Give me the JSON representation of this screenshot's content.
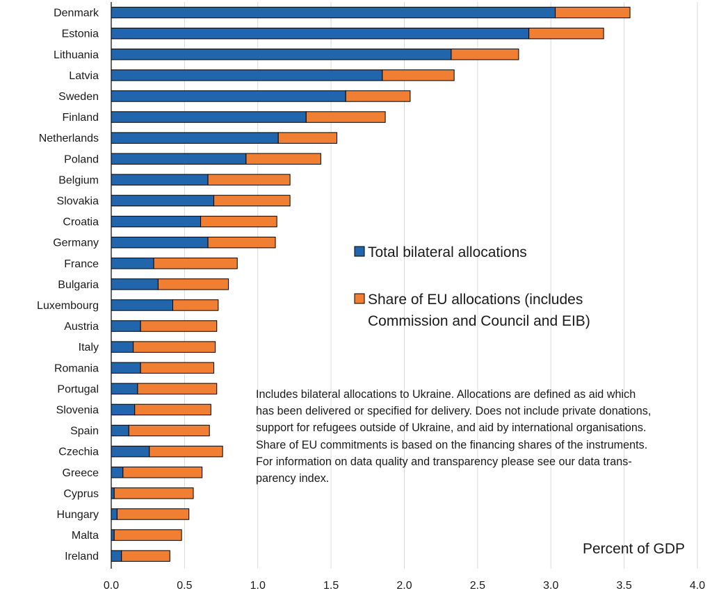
{
  "chart_data": {
    "type": "bar",
    "orientation": "horizontal",
    "stacked": true,
    "categories": [
      "Denmark",
      "Estonia",
      "Lithuania",
      "Latvia",
      "Sweden",
      "Finland",
      "Netherlands",
      "Poland",
      "Belgium",
      "Slovakia",
      "Croatia",
      "Germany",
      "France",
      "Bulgaria",
      "Luxembourg",
      "Austria",
      "Italy",
      "Romania",
      "Portugal",
      "Slovenia",
      "Spain",
      "Czechia",
      "Greece",
      "Cyprus",
      "Hungary",
      "Malta",
      "Ireland"
    ],
    "series": [
      {
        "name": "Total bilateral allocations",
        "color": "#2166ac",
        "values": [
          3.03,
          2.85,
          2.32,
          1.85,
          1.6,
          1.33,
          1.14,
          0.92,
          0.66,
          0.7,
          0.61,
          0.66,
          0.29,
          0.32,
          0.42,
          0.2,
          0.15,
          0.2,
          0.18,
          0.16,
          0.12,
          0.26,
          0.08,
          0.02,
          0.04,
          0.02,
          0.07
        ]
      },
      {
        "name": "Share of EU allocations (includes Commission and Council and EIB)",
        "color": "#f07e33",
        "values": [
          0.51,
          0.51,
          0.46,
          0.49,
          0.44,
          0.54,
          0.4,
          0.51,
          0.56,
          0.52,
          0.52,
          0.46,
          0.57,
          0.48,
          0.31,
          0.52,
          0.56,
          0.5,
          0.54,
          0.52,
          0.55,
          0.5,
          0.54,
          0.54,
          0.49,
          0.46,
          0.33
        ]
      }
    ],
    "xlim": [
      0,
      4.0
    ],
    "xticks": [
      "0.0",
      "0.5",
      "1.0",
      "1.5",
      "2.0",
      "2.5",
      "3.0",
      "3.5",
      "4.0"
    ],
    "xlabel": "Percent of GDP",
    "grid": "vertical",
    "legend": {
      "position": "center-right",
      "entries": [
        {
          "lines": [
            "Total bilateral allocations"
          ]
        },
        {
          "lines": [
            "Share of EU allocations (includes",
            "Commission and Council and EIB)"
          ]
        }
      ]
    },
    "note_lines": [
      "Includes bilateral allocations to Ukraine. Allocations are defined as aid which",
      "has been delivered or specified for delivery. Does not include private donations,",
      "support for refugees outside of Ukraine, and aid by international organisations.",
      "Share of EU commitments is based on the financing shares of the instruments.",
      "For information on data quality and transparency please see our data trans-",
      "parency index."
    ]
  }
}
